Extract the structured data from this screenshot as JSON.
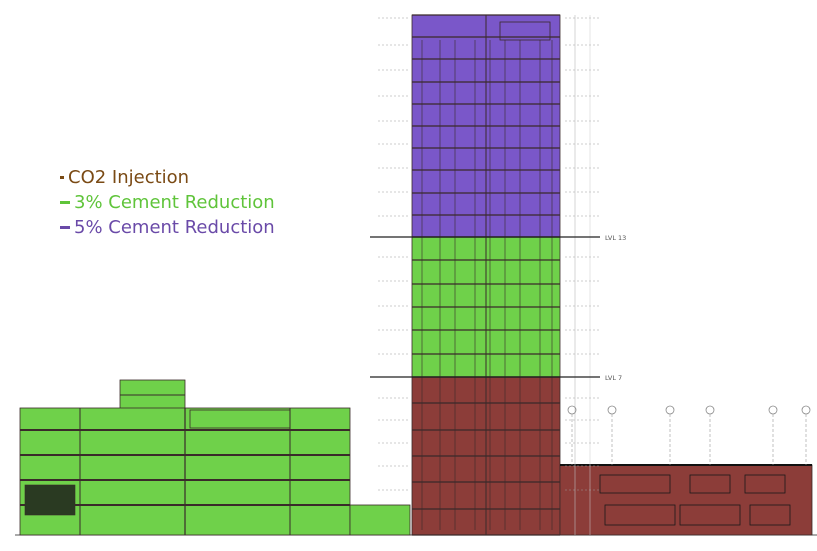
{
  "legend": {
    "items": [
      {
        "label": "CO2 Injection",
        "color": "#7a4a14"
      },
      {
        "label": "3% Cement Reduction",
        "color": "#5fc43a"
      },
      {
        "label": "5% Cement Reduction",
        "color": "#6a4aa8"
      }
    ]
  },
  "levels": {
    "lvl13": "LVL 13",
    "lvl7": "LVL 7"
  },
  "zone_colors": {
    "co2": "#8c3d39",
    "cement3": "#6fd14a",
    "cement5": "#7a57c9",
    "line": "#3a2a2a"
  }
}
